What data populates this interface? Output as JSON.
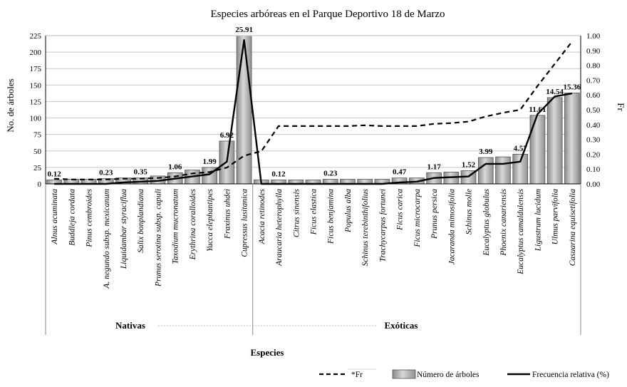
{
  "chart_data": {
    "type": "bar",
    "title": "Especies arbóreas en el Parque Deportivo 18 de Marzo",
    "xlabel": "Especies",
    "ylabel": "No. de árboles",
    "y2label": "Fr",
    "ylim": [
      0,
      225
    ],
    "yticks": [
      "0",
      "25",
      "50",
      "75",
      "100",
      "125",
      "150",
      "175",
      "200",
      "225"
    ],
    "y2lim": [
      0,
      1
    ],
    "y2ticks": [
      "0.00",
      "0.10",
      "0.20",
      "0.30",
      "0.40",
      "0.50",
      "0.60",
      "0.70",
      "0.80",
      "0.90",
      "1.00"
    ],
    "grid": true,
    "groups": [
      {
        "name": "Nativas",
        "start": 0,
        "end": 11
      },
      {
        "name": "Exóticas",
        "start": 12,
        "end": 30
      }
    ],
    "categories": [
      "Alnus acuminata",
      "Buddleja cordata",
      "Pinus cembroides",
      "A. negundo subsp. mexicanum",
      "Liquidambar styraciflua",
      "Salix bonplandiana",
      "Prunus serotina subsp. capuli",
      "Taxodium mucronatum",
      "Erythrina coralloides",
      "Yucca elephantipes",
      "Fraxinus uhdei",
      "Cupressus lusitanica",
      "Acacia retinodes",
      "Araucaria heterophylla",
      "Citrus sinensis",
      "Ficus elastica",
      "Ficus benjamina",
      "Populus alba",
      "Schinus terebinthifolius",
      "Trachycarpus fortunei",
      "Ficus carica",
      "Ficus microcarpa",
      "Prunus persica",
      "Jacaranda mimosifolia",
      "Schinus molle",
      "Eucalyptus globulus",
      "Phoenix canariensis",
      "Eucalyptus camaldulensis",
      "Ligustrum lucidum",
      "Ulmus parvifolia",
      "Casuarina equisetifolia"
    ],
    "series": [
      {
        "name": "Número de árboles",
        "type": "bar",
        "axis": "left",
        "values": [
          6,
          7,
          7,
          8,
          9,
          9,
          12,
          17,
          21,
          25,
          65,
          225,
          6,
          6,
          6,
          6,
          7,
          7,
          7,
          7,
          9,
          9,
          17,
          18,
          20,
          40,
          41,
          45,
          104,
          131,
          138
        ]
      },
      {
        "name": "Frecuencia relativa (%)",
        "type": "line",
        "style": "solid",
        "axis": "right",
        "values": [
          0.0,
          0.0,
          0.0,
          0.0,
          0.01,
          0.015,
          0.02,
          0.035,
          0.05,
          0.065,
          0.15,
          0.97,
          0.0,
          0.0,
          0.0,
          0.0,
          0.0,
          0.0,
          0.0,
          0.0,
          0.01,
          0.015,
          0.04,
          0.045,
          0.05,
          0.135,
          0.135,
          0.15,
          0.47,
          0.59,
          0.61
        ]
      },
      {
        "name": "*Fr",
        "type": "line",
        "style": "dashed",
        "axis": "right",
        "values": [
          0.035,
          0.03,
          0.03,
          0.03,
          0.035,
          0.035,
          0.04,
          0.05,
          0.07,
          0.08,
          0.11,
          0.19,
          0.22,
          0.39,
          0.39,
          0.39,
          0.39,
          0.39,
          0.395,
          0.39,
          0.39,
          0.39,
          0.405,
          0.41,
          0.42,
          0.455,
          0.48,
          0.5,
          0.66,
          0.81,
          0.96
        ]
      }
    ],
    "data_labels": [
      {
        "index": 0,
        "text": "0.12"
      },
      {
        "index": 3,
        "text": "0.23"
      },
      {
        "index": 5,
        "text": "0.35"
      },
      {
        "index": 7,
        "text": "1.06"
      },
      {
        "index": 9,
        "text": "1.99"
      },
      {
        "index": 10,
        "text": "6.92"
      },
      {
        "index": 11,
        "text": "25.91"
      },
      {
        "index": 13,
        "text": "0.12"
      },
      {
        "index": 16,
        "text": "0.23"
      },
      {
        "index": 20,
        "text": "0.47"
      },
      {
        "index": 22,
        "text": "1.17"
      },
      {
        "index": 24,
        "text": "1.52"
      },
      {
        "index": 25,
        "text": "3.99"
      },
      {
        "index": 27,
        "text": "4.57"
      },
      {
        "index": 28,
        "text": "11.61"
      },
      {
        "index": 29,
        "text": "14.54"
      },
      {
        "index": 30,
        "text": "15.36"
      }
    ],
    "legend": {
      "position": "bottom-right",
      "entries": [
        {
          "label": "*Fr",
          "kind": "dashed-line"
        },
        {
          "label": "Número de árboles",
          "kind": "bar"
        },
        {
          "label": "Frecuencia relativa (%)",
          "kind": "solid-line"
        }
      ]
    },
    "colors": {
      "bar_fill": "#a8a8a8",
      "bar_stroke": "#555555",
      "line": "#000000",
      "grid": "#c8c8c8"
    }
  }
}
